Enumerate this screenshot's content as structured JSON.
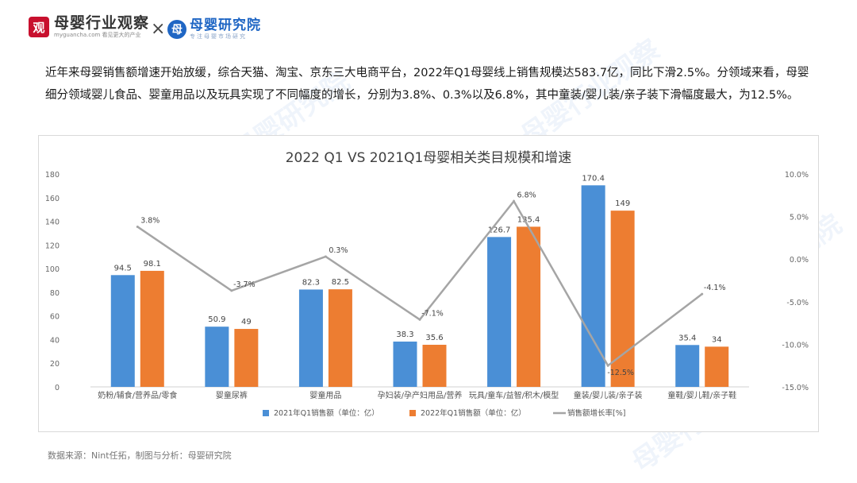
{
  "header": {
    "left_logo_badge": "观",
    "left_logo_name": "母婴行业观察",
    "left_logo_sub": "myguancha.com 看见更大的产业",
    "separator": "×",
    "right_logo_badge": "母",
    "right_logo_name": "母婴研究院",
    "right_logo_sub": "专注母婴市场研究"
  },
  "paragraph": "近年来母婴销售额增速开始放缓，综合天猫、淘宝、京东三大电商平台，2022年Q1母婴线上销售规模达583.7亿，同比下滑2.5%。分领域来看，母婴细分领域婴儿食品、婴童用品以及玩具实现了不同幅度的增长，分别为3.8%、0.3%以及6.8%，其中童装/婴儿装/亲子装下滑幅度最大，为12.5%。",
  "source": "数据来源：Nint任拓，制图与分析：母婴研究院",
  "watermarks": [
    "母婴研究院",
    "母婴行业观察",
    "母婴研究院",
    "母婴行业观察",
    "母婴研究院",
    "母婴行业观察"
  ],
  "chart_data": {
    "type": "bar",
    "title": "2022 Q1 VS 2021Q1母婴相关类目规模和增速",
    "categories": [
      "奶粉/辅食/营养品/零食",
      "婴童尿裤",
      "婴童用品",
      "孕妇装/孕产妇用品/营养",
      "玩具/童车/益智/积木/模型",
      "童装/婴儿装/亲子装",
      "童鞋/婴儿鞋/亲子鞋"
    ],
    "series": [
      {
        "name": "2021年Q1销售额（单位：亿）",
        "kind": "bar",
        "color": "#4a8fd6",
        "values": [
          94.5,
          50.9,
          82.3,
          38.3,
          126.7,
          170.4,
          35.4
        ],
        "labels": [
          "94.5",
          "50.9",
          "82.3",
          "38.3",
          "126.7",
          "170.4",
          "35.4"
        ]
      },
      {
        "name": "2022年Q1销售额（单位：亿）",
        "kind": "bar",
        "color": "#ed7d31",
        "values": [
          98.1,
          49,
          82.5,
          35.6,
          135.4,
          149,
          34
        ],
        "labels": [
          "98.1",
          "49",
          "82.5",
          "35.6",
          "135.4",
          "149",
          "34"
        ]
      },
      {
        "name": "销售额增长率[%]",
        "kind": "line",
        "axis": "right",
        "color": "#a5a5a5",
        "values": [
          3.8,
          -3.7,
          0.3,
          -7.1,
          6.8,
          -12.5,
          -4.1
        ],
        "labels": [
          "3.8%",
          "-3.7%",
          "0.3%",
          "-7.1%",
          "6.8%",
          "-12.5%",
          "-4.1%"
        ]
      }
    ],
    "y_left": {
      "min": 0,
      "max": 180,
      "ticks": [
        "0",
        "20",
        "40",
        "60",
        "80",
        "100",
        "120",
        "140",
        "160",
        "180"
      ]
    },
    "y_right": {
      "min": -15,
      "max": 10,
      "ticks": [
        "-15.0%",
        "-10.0%",
        "-5.0%",
        "0.0%",
        "5.0%",
        "10.0%"
      ]
    },
    "grid": false,
    "legend_position": "bottom"
  }
}
